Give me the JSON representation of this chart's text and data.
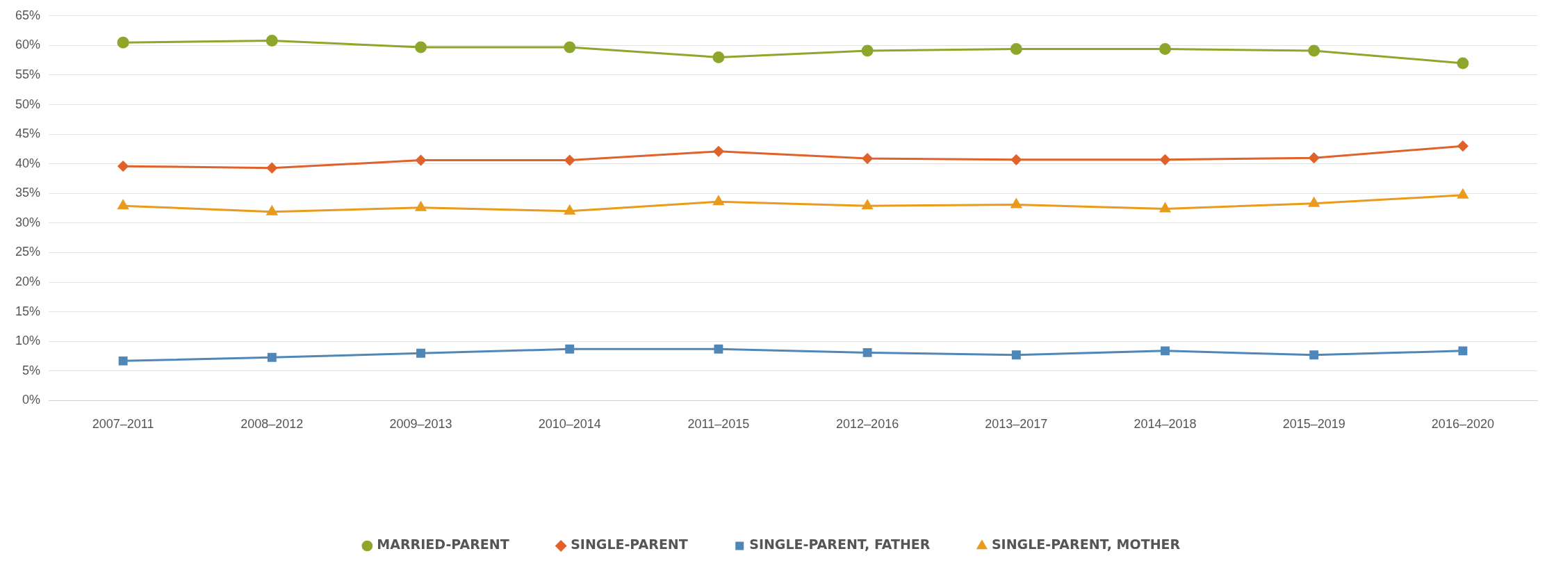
{
  "chart_data": {
    "type": "line",
    "categories": [
      "2007–2011",
      "2008–2012",
      "2009–2013",
      "2010–2014",
      "2011–2015",
      "2012–2016",
      "2013–2017",
      "2014–2018",
      "2015–2019",
      "2016–2020"
    ],
    "series": [
      {
        "name": "MARRIED-PARENT",
        "color": "#8ea62b",
        "marker": "circle",
        "values": [
          60.5,
          60.8,
          59.7,
          59.7,
          58.0,
          59.1,
          59.4,
          59.4,
          59.1,
          57.0
        ]
      },
      {
        "name": "SINGLE-PARENT",
        "color": "#e0622b",
        "marker": "diamond",
        "values": [
          39.6,
          39.3,
          40.6,
          40.6,
          42.1,
          40.9,
          40.7,
          40.7,
          41.0,
          43.0
        ]
      },
      {
        "name": "SINGLE-PARENT, FATHER",
        "color": "#4f87b8",
        "marker": "square",
        "values": [
          6.7,
          7.3,
          8.0,
          8.7,
          8.7,
          8.1,
          7.7,
          8.4,
          7.7,
          8.4
        ]
      },
      {
        "name": "SINGLE-PARENT, MOTHER",
        "color": "#e99b1c",
        "marker": "triangle",
        "values": [
          32.9,
          31.9,
          32.6,
          32.0,
          33.6,
          32.9,
          33.1,
          32.4,
          33.3,
          34.7
        ]
      }
    ],
    "ylim": [
      0,
      65
    ],
    "yticks": [
      {
        "value": 0,
        "label": "0%"
      },
      {
        "value": 5,
        "label": "5%"
      },
      {
        "value": 10,
        "label": "10%"
      },
      {
        "value": 15,
        "label": "15%"
      },
      {
        "value": 20,
        "label": "20%"
      },
      {
        "value": 25,
        "label": "25%"
      },
      {
        "value": 30,
        "label": "30%"
      },
      {
        "value": 35,
        "label": "35%"
      },
      {
        "value": 40,
        "label": "40%"
      },
      {
        "value": 45,
        "label": "45%"
      },
      {
        "value": 50,
        "label": "50%"
      },
      {
        "value": 55,
        "label": "55%"
      },
      {
        "value": 60,
        "label": "60%"
      },
      {
        "value": 65,
        "label": "65%"
      }
    ],
    "grid": "y",
    "legend": "bottom",
    "line_style": "solid"
  }
}
